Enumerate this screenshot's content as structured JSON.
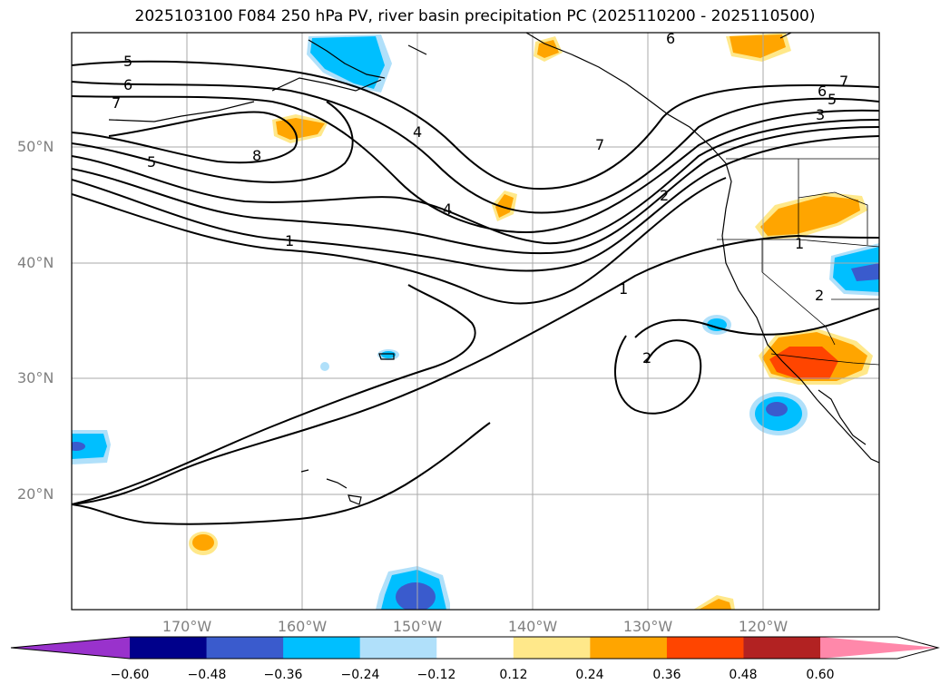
{
  "title": "2025103100 F084 250 hPa PV, river basin precipitation PC (2025110200 - 2025110500)",
  "latitude_labels": [
    "50°N",
    "40°N",
    "30°N",
    "20°N"
  ],
  "longitude_labels": [
    "170°W",
    "160°W",
    "150°W",
    "140°W",
    "130°W",
    "120°W"
  ],
  "pv_contour_labels": [
    "5",
    "6",
    "7",
    "8",
    "5",
    "4",
    "4",
    "1",
    "7",
    "6",
    "5",
    "3",
    "7",
    "2",
    "1",
    "1",
    "2",
    "2",
    "6"
  ],
  "colorbar": {
    "ticks": [
      "−0.60",
      "−0.48",
      "−0.36",
      "−0.24",
      "−0.12",
      "0.12",
      "0.24",
      "0.36",
      "0.48",
      "0.60"
    ],
    "colors": [
      "#9932cc",
      "#00008b",
      "#3a5bcd",
      "#00bfff",
      "#b0e0fa",
      "#ffffff",
      "#ffe88a",
      "#ffa500",
      "#ff4500",
      "#b22222",
      "#ff88aa"
    ]
  }
}
